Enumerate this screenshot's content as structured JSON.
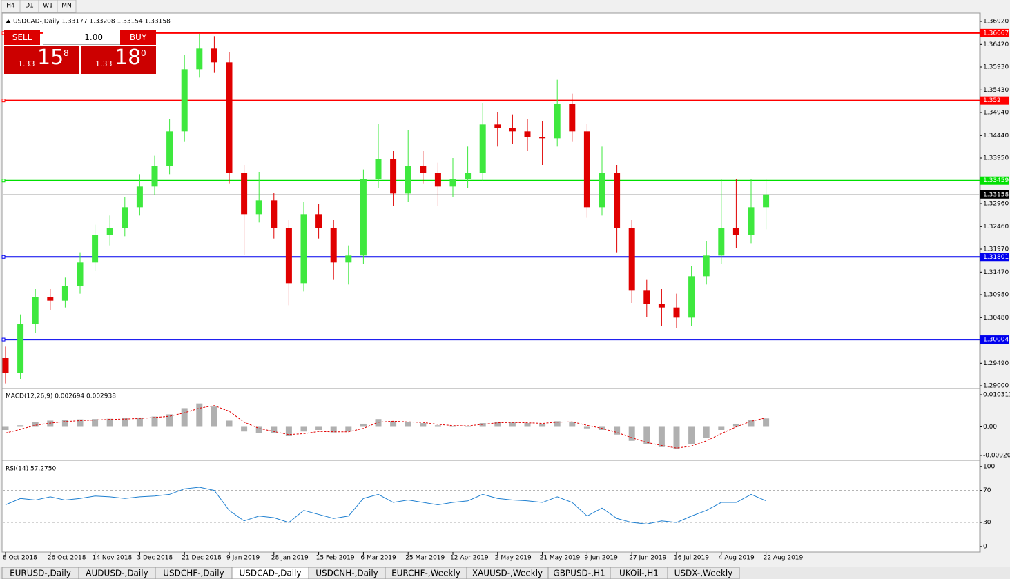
{
  "toolbar": [
    "H4",
    "D1",
    "W1",
    "MN"
  ],
  "trade_panel": {
    "sell": "SELL",
    "lot": "1.00",
    "buy": "BUY",
    "sell_price": {
      "prefix": "1.33",
      "main": "15",
      "sup": "8"
    },
    "buy_price": {
      "prefix": "1.33",
      "main": "18",
      "sup": "0"
    }
  },
  "tabs": [
    {
      "label": "EURUSD-,Daily"
    },
    {
      "label": "AUDUSD-,Daily"
    },
    {
      "label": "USDCHF-,Daily"
    },
    {
      "label": "USDCAD-,Daily",
      "active": true
    },
    {
      "label": "USDCNH-,Daily"
    },
    {
      "label": "EURCHF-,Weekly"
    },
    {
      "label": "XAUUSD-,Weekly"
    },
    {
      "label": "GBPUSD-,H1"
    },
    {
      "label": "UKOil-,H1"
    },
    {
      "label": "USDX-,Weekly"
    }
  ],
  "chart_data": [
    {
      "type": "candlestick",
      "title": "USDCAD-,Daily  1.33177 1.33208 1.33154 1.33158",
      "up_color": "#3ee83e",
      "down_color": "#e00000",
      "categories": [
        "8 Oct 2018",
        null,
        null,
        "26 Oct 2018",
        null,
        null,
        "14 Nov 2018",
        null,
        null,
        "3 Dec 2018",
        null,
        null,
        "21 Dec 2018",
        null,
        null,
        "9 Jan 2019",
        null,
        null,
        "28 Jan 2019",
        null,
        null,
        "15 Feb 2019",
        null,
        null,
        "6 Mar 2019",
        null,
        null,
        "25 Mar 2019",
        null,
        null,
        "12 Apr 2019",
        null,
        null,
        "2 May 2019",
        null,
        null,
        "21 May 2019",
        null,
        null,
        "9 Jun 2019",
        null,
        null,
        "27 Jun 2019",
        null,
        null,
        "16 Jul 2019",
        null,
        null,
        "4 Aug 2019",
        null,
        null,
        "22 Aug 2019"
      ],
      "open": [
        1.296,
        1.2928,
        1.3034,
        1.3093,
        1.3085,
        1.3116,
        1.3168,
        1.3228,
        1.3243,
        1.3288,
        1.3333,
        1.3378,
        1.3453,
        1.3588,
        1.3633,
        1.3603,
        1.3363,
        1.3273,
        1.3303,
        1.3243,
        1.3123,
        1.3273,
        1.3243,
        1.3168,
        1.3183,
        1.3349,
        1.3393,
        1.3318,
        1.3378,
        1.3363,
        1.3333,
        1.3349,
        1.3363,
        1.3468,
        1.3461,
        1.3453,
        1.344,
        1.3438,
        1.3513,
        1.3453,
        1.3288,
        1.3363,
        1.3243,
        1.3108,
        1.3078,
        1.307,
        1.3048,
        1.3138,
        1.3183,
        1.3243,
        1.3228,
        1.3288
      ],
      "high": [
        1.2985,
        1.3055,
        1.311,
        1.311,
        1.3135,
        1.319,
        1.325,
        1.327,
        1.331,
        1.336,
        1.34,
        1.348,
        1.362,
        1.3665,
        1.366,
        1.3625,
        1.338,
        1.3365,
        1.332,
        1.326,
        1.33,
        1.3295,
        1.326,
        1.3205,
        1.337,
        1.347,
        1.341,
        1.3455,
        1.341,
        1.3385,
        1.3395,
        1.342,
        1.3515,
        1.3495,
        1.349,
        1.348,
        1.3475,
        1.3565,
        1.3535,
        1.347,
        1.342,
        1.338,
        1.326,
        1.313,
        1.311,
        1.31,
        1.316,
        1.3215,
        1.335,
        1.335,
        1.335,
        1.335
      ],
      "low": [
        1.2905,
        1.2915,
        1.3015,
        1.3065,
        1.307,
        1.31,
        1.315,
        1.3205,
        1.3225,
        1.327,
        1.3315,
        1.336,
        1.343,
        1.357,
        1.358,
        1.334,
        1.3185,
        1.3255,
        1.322,
        1.3075,
        1.3105,
        1.322,
        1.313,
        1.312,
        1.3165,
        1.333,
        1.329,
        1.33,
        1.334,
        1.329,
        1.331,
        1.333,
        1.3345,
        1.342,
        1.3425,
        1.341,
        1.338,
        1.342,
        1.343,
        1.3265,
        1.327,
        1.319,
        1.308,
        1.305,
        1.303,
        1.3025,
        1.303,
        1.312,
        1.3165,
        1.32,
        1.321,
        1.324
      ],
      "close": [
        1.2928,
        1.3034,
        1.3093,
        1.3085,
        1.3116,
        1.3168,
        1.3228,
        1.3243,
        1.3288,
        1.3333,
        1.3378,
        1.3453,
        1.3588,
        1.3633,
        1.3603,
        1.3363,
        1.3273,
        1.3303,
        1.3243,
        1.3123,
        1.3273,
        1.3243,
        1.3168,
        1.3183,
        1.3349,
        1.3393,
        1.3318,
        1.3378,
        1.3363,
        1.3333,
        1.3349,
        1.3363,
        1.3468,
        1.3461,
        1.3453,
        1.344,
        1.3438,
        1.3513,
        1.3453,
        1.3288,
        1.3363,
        1.3243,
        1.3108,
        1.3078,
        1.307,
        1.3048,
        1.3138,
        1.3183,
        1.3243,
        1.3228,
        1.3288,
        1.3316
      ],
      "ylim": [
        1.28955,
        1.37085
      ],
      "yticks": [
        {
          "value": 1.3692,
          "label": "1.36920"
        },
        {
          "value": 1.3642,
          "label": "1.36420"
        },
        {
          "value": 1.3593,
          "label": "1.35930"
        },
        {
          "value": 1.3543,
          "label": "1.35430"
        },
        {
          "value": 1.3494,
          "label": "1.34940"
        },
        {
          "value": 1.3444,
          "label": "1.34440"
        },
        {
          "value": 1.3395,
          "label": "1.33950"
        },
        {
          "value": 1.3296,
          "label": "1.32960"
        },
        {
          "value": 1.3246,
          "label": "1.32460"
        },
        {
          "value": 1.3197,
          "label": "1.31970"
        },
        {
          "value": 1.3147,
          "label": "1.31470"
        },
        {
          "value": 1.3098,
          "label": "1.30980"
        },
        {
          "value": 1.3048,
          "label": "1.30480"
        },
        {
          "value": 1.2949,
          "label": "1.29490"
        },
        {
          "value": 1.29,
          "label": "1.29000"
        }
      ],
      "levels": [
        {
          "value": 1.36667,
          "color": "#ff0000"
        },
        {
          "value": 1.352,
          "label": "1.35200",
          "color": "#ff0000"
        },
        {
          "value": 1.33459,
          "color": "#00e000"
        },
        {
          "value": 1.31801,
          "color": "#0000ee"
        },
        {
          "value": 1.30004,
          "color": "#0000ee"
        }
      ],
      "current_price": 1.33158
    },
    {
      "type": "macd",
      "title": "MACD(12,26,9) 0.002694 0.002938",
      "color": "#b0b0b0",
      "signal_color": "#e00000",
      "values": [
        -0.001,
        0.0005,
        0.0015,
        0.002,
        0.0022,
        0.0024,
        0.0025,
        0.0026,
        0.0028,
        0.003,
        0.0033,
        0.004,
        0.006,
        0.0075,
        0.0065,
        0.002,
        -0.0015,
        -0.002,
        -0.002,
        -0.003,
        -0.0015,
        -0.001,
        -0.0018,
        -0.0015,
        0.001,
        0.0025,
        0.0018,
        0.0015,
        0.0012,
        0.0005,
        0.0002,
        0.0003,
        0.0012,
        0.0015,
        0.0014,
        0.0012,
        0.001,
        0.0018,
        0.0015,
        -0.0005,
        -0.001,
        -0.0025,
        -0.0045,
        -0.0055,
        -0.0065,
        -0.007,
        -0.0055,
        -0.0035,
        -0.001,
        0.001,
        0.0022,
        0.0027
      ],
      "signal": [
        -0.002,
        -0.0008,
        0.0005,
        0.0012,
        0.0017,
        0.002,
        0.0022,
        0.0024,
        0.0025,
        0.0027,
        0.003,
        0.0034,
        0.0045,
        0.006,
        0.0068,
        0.005,
        0.0015,
        -0.0005,
        -0.0015,
        -0.0025,
        -0.0022,
        -0.0015,
        -0.0016,
        -0.0016,
        -0.0005,
        0.0015,
        0.0018,
        0.0016,
        0.0014,
        0.0008,
        0.0004,
        0.0003,
        0.0008,
        0.0013,
        0.0014,
        0.0013,
        0.0011,
        0.0015,
        0.0016,
        0.0005,
        -0.0005,
        -0.0018,
        -0.0035,
        -0.005,
        -0.006,
        -0.0068,
        -0.0062,
        -0.0045,
        -0.0022,
        0.0,
        0.0018,
        0.0029
      ],
      "ylim": [
        -0.01076,
        0.01164
      ],
      "yticks": [
        0.010311,
        {
          "value": 0,
          "label": "0.00"
        },
        -0.009203
      ]
    },
    {
      "type": "line",
      "title": "RSI(14) 57.2750",
      "color": "#1e7fd0",
      "values": [
        52,
        60,
        58,
        62,
        58,
        60,
        63,
        62,
        60,
        62,
        63,
        65,
        72,
        74,
        70,
        45,
        32,
        38,
        36,
        30,
        45,
        40,
        35,
        38,
        60,
        65,
        55,
        58,
        55,
        52,
        55,
        57,
        65,
        60,
        58,
        57,
        55,
        62,
        55,
        38,
        48,
        35,
        30,
        28,
        32,
        30,
        38,
        45,
        55,
        55,
        65,
        57
      ],
      "ylim": [
        -7,
        105
      ],
      "yticks": [
        100,
        70,
        30,
        0
      ],
      "levels": [
        70,
        30
      ]
    }
  ]
}
